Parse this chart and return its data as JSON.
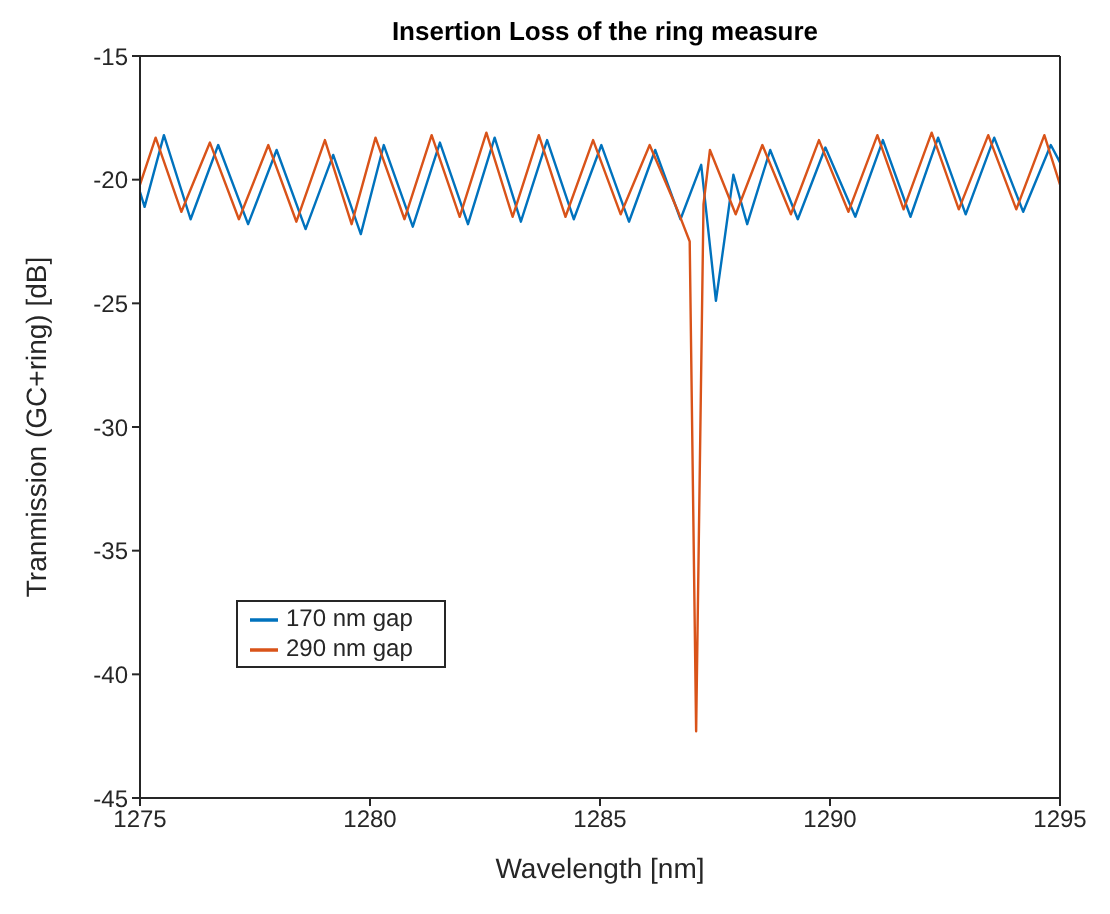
{
  "chart_data": {
    "type": "line",
    "title": "Insertion Loss of the ring measure",
    "xlabel": "Wavelength [nm]",
    "ylabel": "Tranmission (GC+ring) [dB]",
    "xlim": [
      1275,
      1295
    ],
    "xticks": [
      1275,
      1280,
      1285,
      1290,
      1295
    ],
    "ylim": [
      -45,
      -15
    ],
    "yticks": [
      -45,
      -40,
      -35,
      -30,
      -25,
      -20,
      -15
    ],
    "grid": false,
    "legend": "bottom left",
    "line_style": "solid",
    "marker": "none",
    "series": [
      {
        "name": "170 nm gap",
        "color": "#0072bd",
        "x": [
          1275.0,
          1275.1,
          1275.52,
          1276.1,
          1276.7,
          1277.35,
          1277.97,
          1278.6,
          1279.2,
          1279.8,
          1280.3,
          1280.93,
          1281.52,
          1282.13,
          1282.71,
          1283.28,
          1283.85,
          1284.43,
          1285.03,
          1285.63,
          1286.2,
          1286.75,
          1287.2,
          1287.52,
          1287.7,
          1287.9,
          1288.2,
          1288.7,
          1289.3,
          1289.9,
          1290.55,
          1291.15,
          1291.75,
          1292.35,
          1292.95,
          1293.57,
          1294.2,
          1294.8,
          1295.0
        ],
        "values": [
          -20.5,
          -21.1,
          -18.2,
          -21.6,
          -18.6,
          -21.8,
          -18.8,
          -22.0,
          -19.0,
          -22.2,
          -18.6,
          -21.9,
          -18.5,
          -21.8,
          -18.3,
          -21.7,
          -18.4,
          -21.6,
          -18.6,
          -21.7,
          -18.8,
          -21.6,
          -19.4,
          -24.9,
          -22.5,
          -19.8,
          -21.8,
          -18.8,
          -21.6,
          -18.7,
          -21.5,
          -18.4,
          -21.5,
          -18.3,
          -21.4,
          -18.3,
          -21.3,
          -18.6,
          -19.3
        ]
      },
      {
        "name": "290 nm gap",
        "color": "#d95319",
        "x": [
          1275.0,
          1275.34,
          1275.9,
          1276.52,
          1277.15,
          1277.79,
          1278.4,
          1279.02,
          1279.6,
          1280.12,
          1280.75,
          1281.34,
          1281.95,
          1282.53,
          1283.1,
          1283.67,
          1284.25,
          1284.85,
          1285.45,
          1286.08,
          1286.7,
          1286.95,
          1287.09,
          1287.25,
          1287.39,
          1287.95,
          1288.53,
          1289.15,
          1289.76,
          1290.4,
          1291.03,
          1291.6,
          1292.21,
          1292.8,
          1293.44,
          1294.05,
          1294.66,
          1295.0
        ],
        "values": [
          -20.2,
          -18.3,
          -21.3,
          -18.5,
          -21.6,
          -18.6,
          -21.7,
          -18.4,
          -21.8,
          -18.3,
          -21.6,
          -18.2,
          -21.5,
          -18.1,
          -21.5,
          -18.2,
          -21.5,
          -18.4,
          -21.4,
          -18.6,
          -21.3,
          -22.5,
          -42.3,
          -21.0,
          -18.8,
          -21.4,
          -18.6,
          -21.4,
          -18.4,
          -21.3,
          -18.2,
          -21.2,
          -18.1,
          -21.2,
          -18.2,
          -21.2,
          -18.2,
          -20.2
        ]
      }
    ]
  }
}
